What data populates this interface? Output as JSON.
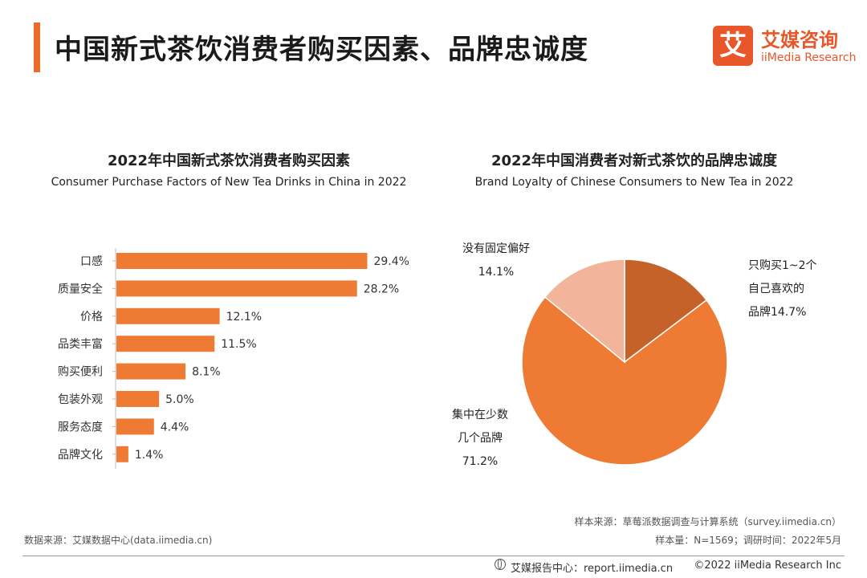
{
  "header": {
    "title": "中国新式茶饮消费者购买因素、品牌忠诚度",
    "logo_mark": "艾",
    "logo_cn": "艾媒咨询",
    "logo_en": "iiMedia Research",
    "accent_color": "#EC6B2A"
  },
  "chart_data": [
    {
      "type": "bar",
      "orientation": "horizontal",
      "title": "2022年中国新式茶饮消费者购买因素",
      "subtitle": "Consumer Purchase Factors of New Tea Drinks in China in 2022",
      "categories": [
        "口感",
        "质量安全",
        "价格",
        "品类丰富",
        "购买便利",
        "包装外观",
        "服务态度",
        "品牌文化"
      ],
      "values": [
        29.4,
        28.2,
        12.1,
        11.5,
        8.1,
        5.0,
        4.4,
        1.4
      ],
      "labels": [
        "29.4%",
        "28.2%",
        "12.1%",
        "11.5%",
        "8.1%",
        "5.0%",
        "4.4%",
        "1.4%"
      ],
      "xlim": [
        0,
        35
      ],
      "grid": false,
      "color": "#EE7A33"
    },
    {
      "type": "pie",
      "title": "2022年中国消费者对新式茶饮的品牌忠诚度",
      "subtitle": "Brand Loyalty of Chinese Consumers to New Tea in 2022",
      "slices": [
        {
          "label": [
            "只购买1~2个",
            "自己喜欢的",
            "品牌14.7%"
          ],
          "value": 14.7,
          "color": "#C4622A"
        },
        {
          "label": [
            "集中在少数",
            "几个品牌",
            "71.2%"
          ],
          "value": 71.2,
          "color": "#EE7A33"
        },
        {
          "label": [
            "没有固定偏好",
            "14.1%"
          ],
          "value": 14.1,
          "color": "#F2B59C"
        }
      ],
      "start": "12 o'clock",
      "direction": "clockwise"
    }
  ],
  "footer": {
    "data_source": "数据来源：艾媒数据中心(data.iimedia.cn)",
    "sample_source": "样本来源：草莓派数据调查与计算系统（survey.iimedia.cn）",
    "sample_size": "样本量：N=1569；调研时间：2022年5月",
    "report_center": "艾媒报告中心：report.iimedia.cn",
    "copyright": "©2022  iiMedia Research  Inc"
  }
}
